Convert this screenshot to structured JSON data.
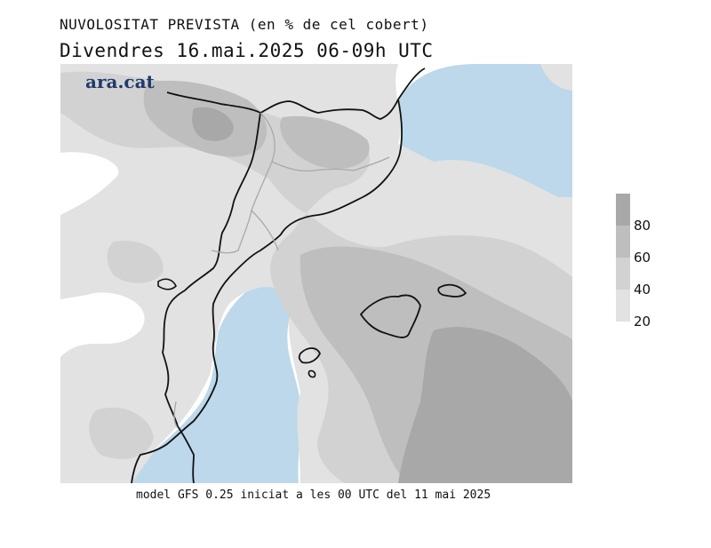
{
  "header": {
    "line1": "NUVOLOSITAT PREVISTA (en % de cel cobert)",
    "line2": "Divendres  16.mai.2025 06-09h UTC"
  },
  "brand": {
    "logo_text": "ara.cat"
  },
  "footer": {
    "text": "model GFS 0.25 iniciat a les 00 UTC del 11 mai 2025"
  },
  "legend": {
    "ticks": [
      "80",
      "60",
      "40",
      "20"
    ],
    "bands": [
      {
        "range": "80-100",
        "color": "#a8a8a8"
      },
      {
        "range": "60-80",
        "color": "#bebebe"
      },
      {
        "range": "40-60",
        "color": "#d2d2d2"
      },
      {
        "range": "20-40",
        "color": "#e2e2e2"
      }
    ]
  },
  "map": {
    "sea_color": "#bcd8ea",
    "land_color": "#ffffff",
    "border_color": "#111111",
    "internal_border_color": "#a9a9a9"
  }
}
